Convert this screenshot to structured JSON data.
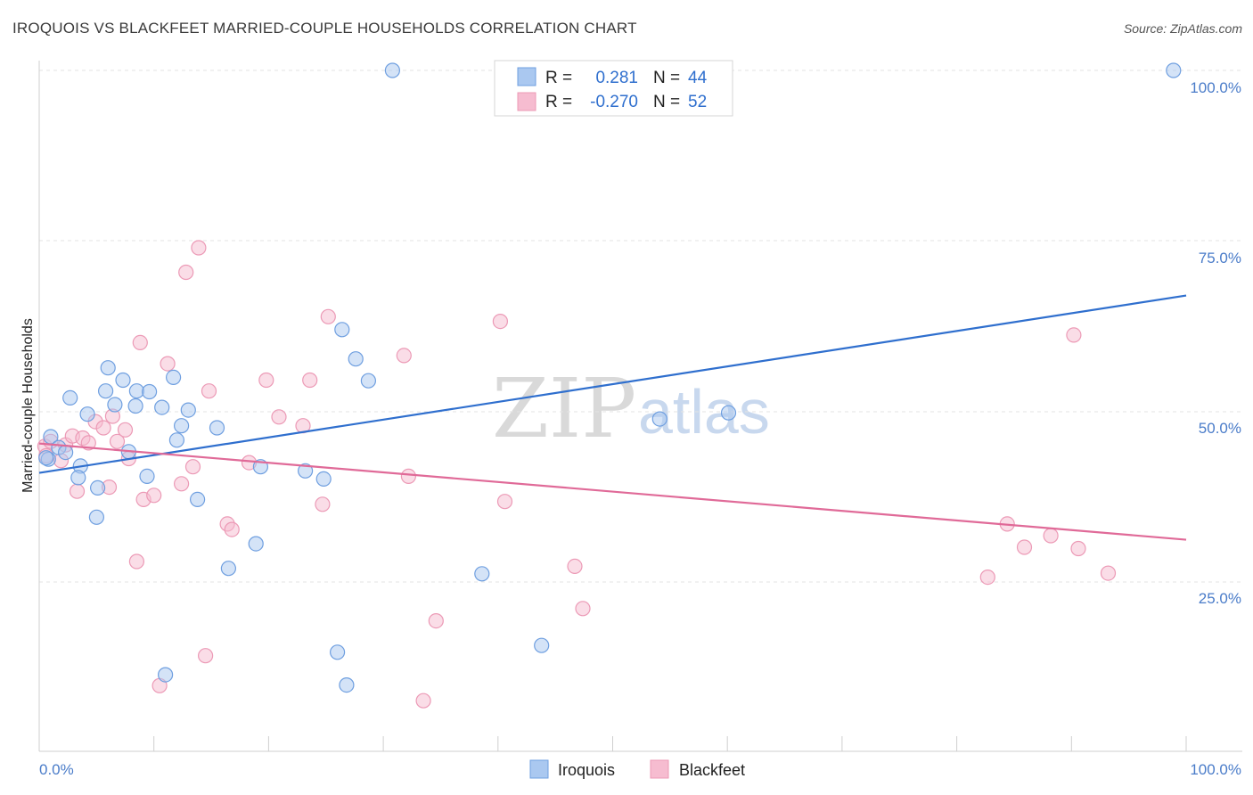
{
  "header": {
    "title": "IROQUOIS VS BLACKFEET MARRIED-COUPLE HOUSEHOLDS CORRELATION CHART",
    "source": "Source: ZipAtlas.com"
  },
  "legend": {
    "r_label": "R =",
    "n_label": "N =",
    "iroquois_r": "0.281",
    "iroquois_n": "44",
    "blackfeet_r": "-0.270",
    "blackfeet_n": "52"
  },
  "bottom_legend": {
    "iroquois": "Iroquois",
    "blackfeet": "Blackfeet"
  },
  "watermark": {
    "zip": "ZIP",
    "atlas": "atlas"
  },
  "colors": {
    "iroquois_fill": "#aac8f0",
    "iroquois_stroke": "#6f9fe0",
    "iroquois_line": "#2f6fce",
    "blackfeet_fill": "#f6bcd0",
    "blackfeet_stroke": "#ec9ab6",
    "blackfeet_line": "#e06a98",
    "tick_text": "#4a7cc9"
  },
  "chart_data": {
    "type": "scatter",
    "title": "IROQUOIS VS BLACKFEET MARRIED-COUPLE HOUSEHOLDS CORRELATION CHART",
    "xlabel": "",
    "ylabel": "Married-couple Households",
    "x_tick_labels": [
      "0.0%",
      "100.0%"
    ],
    "y_tick_labels": [
      "25.0%",
      "50.0%",
      "75.0%",
      "100.0%"
    ],
    "xlim": [
      0,
      100
    ],
    "ylim": [
      0,
      102
    ],
    "grid": true,
    "legend_position": "top-center",
    "series": [
      {
        "name": "Iroquois",
        "r": 0.281,
        "n": 44,
        "trend": {
          "x": [
            0,
            100
          ],
          "y": [
            41.0,
            67.0
          ]
        },
        "points": [
          [
            0.8,
            43
          ],
          [
            1.0,
            46.3
          ],
          [
            1.7,
            44.7
          ],
          [
            2.3,
            44.0
          ],
          [
            2.7,
            52.0
          ],
          [
            3.6,
            42.0
          ],
          [
            3.4,
            40.3
          ],
          [
            4.2,
            49.6
          ],
          [
            5.1,
            38.8
          ],
          [
            5.0,
            34.5
          ],
          [
            5.8,
            53.0
          ],
          [
            6.0,
            56.4
          ],
          [
            6.6,
            51.0
          ],
          [
            7.3,
            54.6
          ],
          [
            7.8,
            44.1
          ],
          [
            8.5,
            53.0
          ],
          [
            8.4,
            50.8
          ],
          [
            9.4,
            40.5
          ],
          [
            9.6,
            52.9
          ],
          [
            10.7,
            50.6
          ],
          [
            11.7,
            55.0
          ],
          [
            12.0,
            45.8
          ],
          [
            12.4,
            47.9
          ],
          [
            13.0,
            50.2
          ],
          [
            13.8,
            37.1
          ],
          [
            15.5,
            47.6
          ],
          [
            16.5,
            27.0
          ],
          [
            18.9,
            30.6
          ],
          [
            19.3,
            41.9
          ],
          [
            23.2,
            41.3
          ],
          [
            24.8,
            40.1
          ],
          [
            26.0,
            14.7
          ],
          [
            26.4,
            62.0
          ],
          [
            26.8,
            9.9
          ],
          [
            27.6,
            57.7
          ],
          [
            28.7,
            54.5
          ],
          [
            30.8,
            100.0
          ],
          [
            38.6,
            26.2
          ],
          [
            43.8,
            15.7
          ],
          [
            54.1,
            48.9
          ],
          [
            60.1,
            49.8
          ],
          [
            98.9,
            100.0
          ],
          [
            11.0,
            11.4
          ],
          [
            0.6,
            43.2
          ]
        ]
      },
      {
        "name": "Blackfeet",
        "r": -0.27,
        "n": 52,
        "trend": {
          "x": [
            0,
            100
          ],
          "y": [
            45.3,
            31.2
          ]
        },
        "points": [
          [
            0.5,
            44.9
          ],
          [
            0.6,
            43.5
          ],
          [
            1.0,
            45.6
          ],
          [
            1.9,
            42.8
          ],
          [
            2.3,
            45.1
          ],
          [
            2.9,
            46.4
          ],
          [
            3.3,
            38.3
          ],
          [
            3.8,
            46.1
          ],
          [
            4.3,
            45.4
          ],
          [
            4.9,
            48.5
          ],
          [
            5.6,
            47.6
          ],
          [
            6.1,
            38.9
          ],
          [
            6.4,
            49.3
          ],
          [
            6.8,
            45.6
          ],
          [
            7.5,
            47.3
          ],
          [
            7.8,
            43.1
          ],
          [
            8.5,
            28.0
          ],
          [
            8.8,
            60.1
          ],
          [
            9.1,
            37.1
          ],
          [
            10.0,
            37.7
          ],
          [
            10.5,
            9.8
          ],
          [
            11.2,
            57.0
          ],
          [
            12.4,
            39.4
          ],
          [
            12.8,
            70.4
          ],
          [
            13.4,
            41.9
          ],
          [
            13.9,
            74.0
          ],
          [
            14.5,
            14.2
          ],
          [
            14.8,
            53.0
          ],
          [
            16.4,
            33.5
          ],
          [
            16.8,
            32.7
          ],
          [
            18.3,
            42.5
          ],
          [
            19.8,
            54.6
          ],
          [
            20.9,
            49.2
          ],
          [
            23.0,
            47.9
          ],
          [
            23.6,
            54.6
          ],
          [
            24.7,
            36.4
          ],
          [
            25.2,
            63.9
          ],
          [
            31.8,
            58.2
          ],
          [
            32.2,
            40.5
          ],
          [
            33.5,
            7.6
          ],
          [
            34.6,
            19.3
          ],
          [
            40.2,
            63.2
          ],
          [
            40.6,
            36.8
          ],
          [
            46.7,
            27.3
          ],
          [
            47.4,
            21.1
          ],
          [
            82.7,
            25.7
          ],
          [
            84.4,
            33.5
          ],
          [
            85.9,
            30.1
          ],
          [
            88.2,
            31.8
          ],
          [
            90.2,
            61.2
          ],
          [
            90.6,
            29.9
          ],
          [
            93.2,
            26.3
          ]
        ]
      }
    ]
  }
}
